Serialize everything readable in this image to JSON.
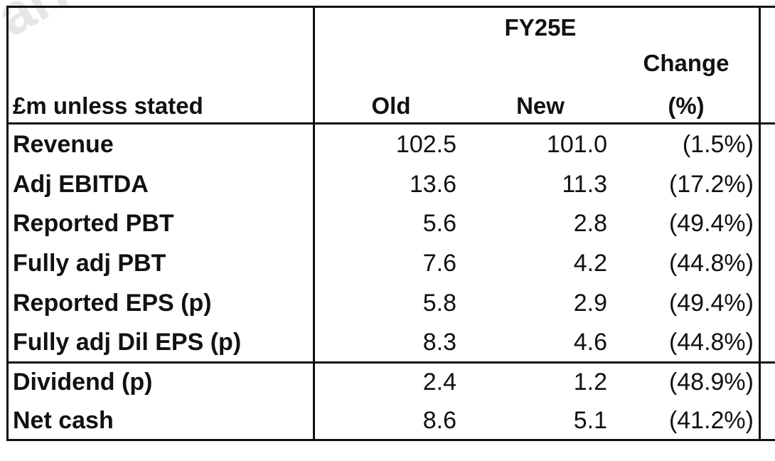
{
  "table": {
    "period": "FY25E",
    "header": {
      "row_label": "£m unless stated",
      "old": "Old",
      "new": "New",
      "change_line1": "Change",
      "change_line2": "(%)"
    },
    "rows": [
      {
        "label": "Revenue",
        "old": "102.5",
        "new": "101.0",
        "change": "(1.5%)"
      },
      {
        "label": "Adj EBITDA",
        "old": "13.6",
        "new": "11.3",
        "change": "(17.2%)"
      },
      {
        "label": "Reported PBT",
        "old": "5.6",
        "new": "2.8",
        "change": "(49.4%)"
      },
      {
        "label": "Fully adj PBT",
        "old": "7.6",
        "new": "4.2",
        "change": "(44.8%)"
      },
      {
        "label": "Reported EPS (p)",
        "old": "5.8",
        "new": "2.9",
        "change": "(49.4%)"
      },
      {
        "label": "Fully adj Dil EPS (p)",
        "old": "8.3",
        "new": "4.6",
        "change": "(44.8%)"
      },
      {
        "label": "Dividend (p)",
        "old": "2.4",
        "new": "1.2",
        "change": "(48.9%)"
      },
      {
        "label": "Net cash",
        "old": "8.6",
        "new": "5.1",
        "change": "(41.2%)"
      }
    ]
  }
}
